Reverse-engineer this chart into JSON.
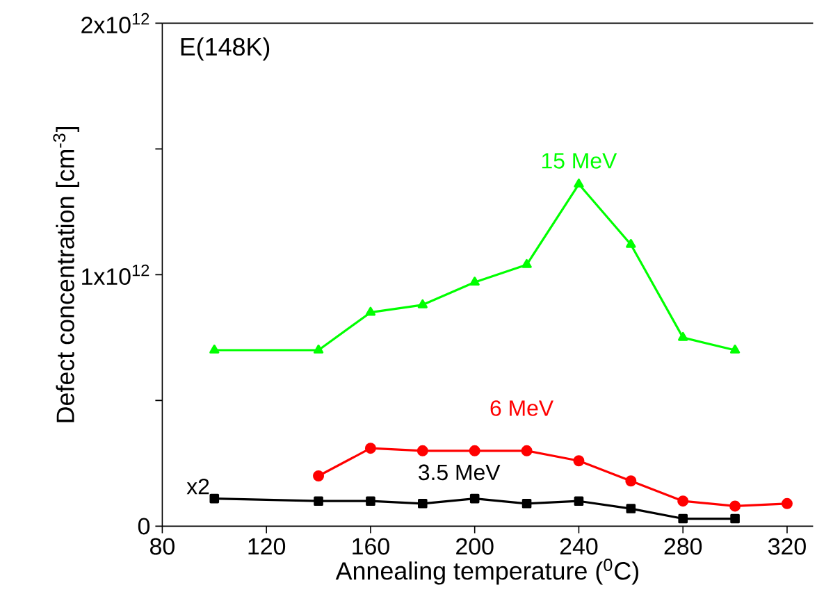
{
  "chart_data": {
    "type": "line",
    "xlabel": "Annealing temperature ($^{0}$C)",
    "ylabel": "Defect concentration [cm$^{-3}$]",
    "x": [
      100,
      140,
      160,
      180,
      200,
      220,
      240,
      260,
      280,
      300
    ],
    "series": [
      {
        "name": "15 MeV",
        "color": "#00ff00",
        "marker": "triangle",
        "values": [
          700000000000.0,
          700000000000.0,
          850000000000.0,
          880000000000.0,
          970000000000.0,
          1040000000000.0,
          1360000000000.0,
          1120000000000.0,
          750000000000.0,
          700000000000.0
        ]
      },
      {
        "name": "6 MeV",
        "color": "#ff0000",
        "marker": "circle",
        "x": [
          140,
          160,
          180,
          200,
          220,
          240,
          260,
          280,
          300,
          320
        ],
        "values": [
          200000000000.0,
          310000000000.0,
          300000000000.0,
          300000000000.0,
          300000000000.0,
          260000000000.0,
          180000000000.0,
          100000000000.0,
          80000000000.0,
          90000000000.0
        ]
      },
      {
        "name": "3.5 MeV",
        "color": "#000000",
        "marker": "square",
        "values": [
          110000000000.0,
          100000000000.0,
          100000000000.0,
          90000000000.0,
          110000000000.0,
          90000000000.0,
          100000000000.0,
          70000000000.0,
          30000000000.0,
          30000000000.0
        ]
      }
    ],
    "annotations": [
      "E(148K)",
      {
        "text": "x2",
        "x": 100,
        "y": 110000000000.0
      }
    ],
    "xlim": [
      80,
      330
    ],
    "xticks": [
      80,
      120,
      160,
      200,
      240,
      280,
      320
    ],
    "ylim": [
      0,
      2000000000000.0
    ],
    "yticks": [
      0,
      {
        "value": 500000000000.0,
        "label": null
      },
      {
        "value": 1000000000000.0,
        "label": "1x10$^{12}$"
      },
      {
        "value": 1500000000000.0,
        "label": null
      },
      {
        "value": 2000000000000.0,
        "label": "2x10$^{12}$"
      }
    ],
    "grid": false,
    "line_style": "solid"
  }
}
